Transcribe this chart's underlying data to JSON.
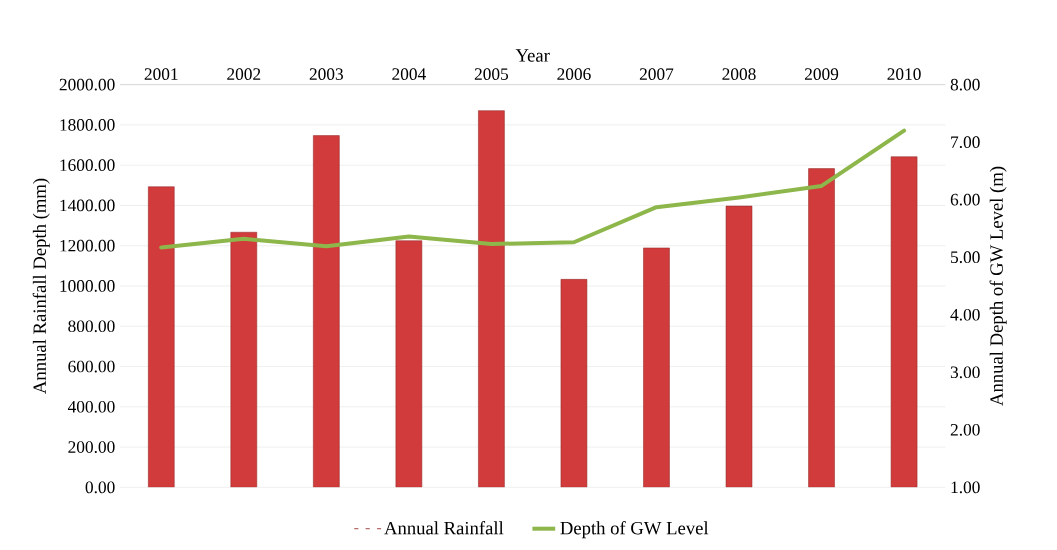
{
  "chart_data": {
    "type": "bar",
    "xlabel": "Year",
    "ylabel": "Annual Rainfall Depth (mm)",
    "y2label": "Annual Depth of GW Level (m)",
    "categories": [
      "2001",
      "2002",
      "2003",
      "2004",
      "2005",
      "2006",
      "2007",
      "2008",
      "2009",
      "2010"
    ],
    "series": [
      {
        "name": "Annual Rainfall",
        "color": "#d13b3b",
        "values": [
          1493,
          1267,
          1747,
          1225,
          1871,
          1033,
          1189,
          1397,
          1583,
          1642
        ]
      },
      {
        "name": "Depth of GW Level",
        "type": "line",
        "axis": "y2",
        "color": "#8db64b",
        "values": [
          5.17,
          5.32,
          5.19,
          5.36,
          5.23,
          5.26,
          5.87,
          6.04,
          6.24,
          7.2
        ]
      }
    ],
    "ylim": [
      0,
      2000
    ],
    "yticks": [
      {
        "value": 0,
        "label": "0.00"
      },
      {
        "value": 200,
        "label": "200.00"
      },
      {
        "value": 400,
        "label": "400.00"
      },
      {
        "value": 600,
        "label": "600.00"
      },
      {
        "value": 800,
        "label": "800.00"
      },
      {
        "value": 1000,
        "label": "1000.00"
      },
      {
        "value": 1200,
        "label": "1200.00"
      },
      {
        "value": 1400,
        "label": "1400.00"
      },
      {
        "value": 1600,
        "label": "1600.00"
      },
      {
        "value": 1800,
        "label": "1800.00"
      },
      {
        "value": 2000,
        "label": "2000.00"
      }
    ],
    "y2lim": [
      1,
      8
    ],
    "y2ticks": [
      {
        "value": 1,
        "label": "1.00"
      },
      {
        "value": 2,
        "label": "2.00"
      },
      {
        "value": 3,
        "label": "3.00"
      },
      {
        "value": 4,
        "label": "4.00"
      },
      {
        "value": 5,
        "label": "5.00"
      },
      {
        "value": 6,
        "label": "6.00"
      },
      {
        "value": 7,
        "label": "7.00"
      },
      {
        "value": 8,
        "label": "8.00"
      }
    ],
    "grid": "y",
    "legend": "bottom"
  }
}
